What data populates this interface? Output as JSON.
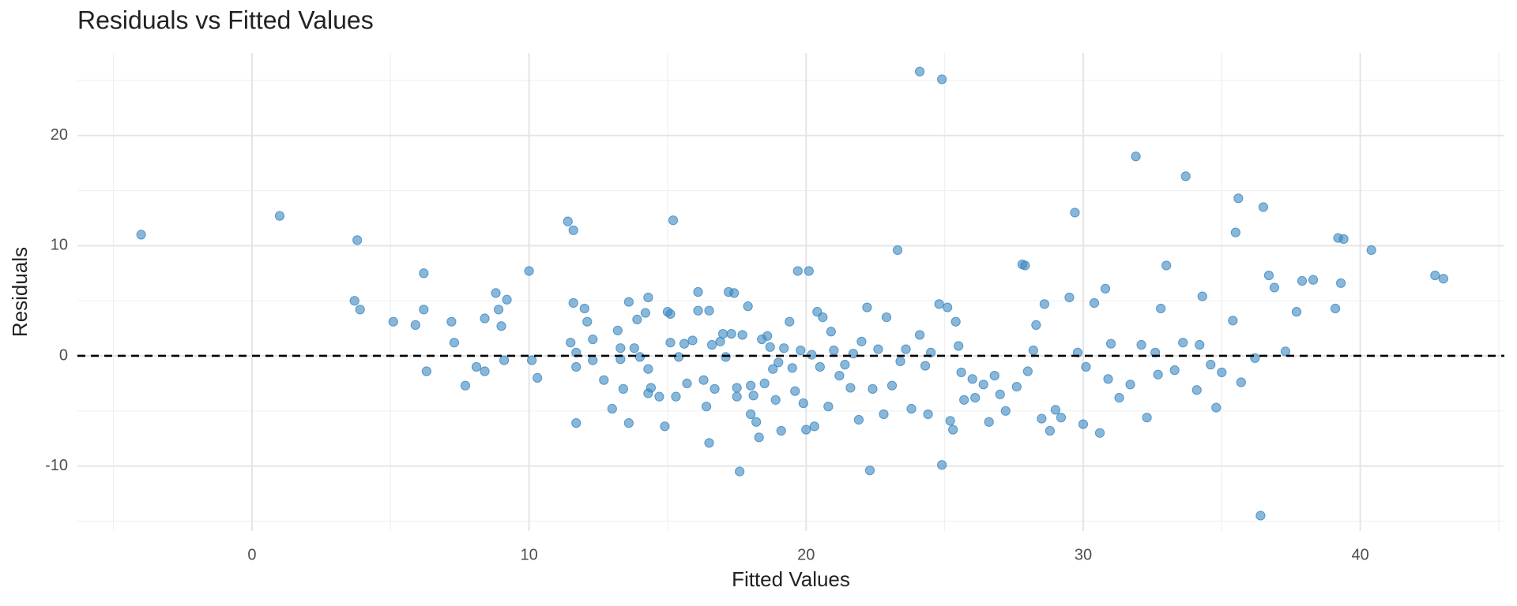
{
  "chart_data": {
    "type": "scatter",
    "title": "Residuals vs Fitted Values",
    "x_label": "Fitted Values",
    "y_label": "Residuals",
    "color": "#3a87c0",
    "grid": true,
    "hline": 0,
    "xlim": [
      -6.3,
      45.2
    ],
    "ylim": [
      -15.9,
      27.5
    ],
    "xticks": [
      0,
      10,
      20,
      30,
      40
    ],
    "yticks": [
      -10,
      0,
      10,
      20
    ],
    "x_minor_grid": [
      -5,
      5,
      15,
      25,
      35,
      45
    ],
    "y_minor_grid": [
      -15,
      -5,
      5,
      15,
      25
    ],
    "x": [
      -4.0,
      1.0,
      3.7,
      3.8,
      3.9,
      5.1,
      5.9,
      6.2,
      6.2,
      6.3,
      7.2,
      7.3,
      7.7,
      8.1,
      8.4,
      8.4,
      8.8,
      8.9,
      9.0,
      9.2,
      9.1,
      10.0,
      10.1,
      10.3,
      11.4,
      11.6,
      11.5,
      11.6,
      11.7,
      11.7,
      11.7,
      12.0,
      12.1,
      12.3,
      12.3,
      12.7,
      13.0,
      13.2,
      13.3,
      13.3,
      13.4,
      13.6,
      13.6,
      13.8,
      13.9,
      14.0,
      14.2,
      14.3,
      14.3,
      14.3,
      14.4,
      14.7,
      14.9,
      15.0,
      15.1,
      15.1,
      15.2,
      15.3,
      15.4,
      15.6,
      15.7,
      15.9,
      16.1,
      16.1,
      16.3,
      16.4,
      16.5,
      16.5,
      16.6,
      16.7,
      16.9,
      17.0,
      17.1,
      17.2,
      17.3,
      17.4,
      17.5,
      17.5,
      17.6,
      17.7,
      17.9,
      18.0,
      18.0,
      18.1,
      18.2,
      18.3,
      18.4,
      18.5,
      18.6,
      18.7,
      18.8,
      18.9,
      19.0,
      19.1,
      19.2,
      19.4,
      19.5,
      19.6,
      19.7,
      19.8,
      19.9,
      20.0,
      20.1,
      20.2,
      20.3,
      20.4,
      20.5,
      20.6,
      20.8,
      20.9,
      21.0,
      21.2,
      21.4,
      21.6,
      21.7,
      21.9,
      22.0,
      22.2,
      22.3,
      22.4,
      22.6,
      22.8,
      22.9,
      23.1,
      23.3,
      23.4,
      23.6,
      23.8,
      24.1,
      24.1,
      24.3,
      24.4,
      24.5,
      24.8,
      24.9,
      24.9,
      25.1,
      25.2,
      25.3,
      25.4,
      25.5,
      25.6,
      25.7,
      26.0,
      26.1,
      26.4,
      26.6,
      26.8,
      27.0,
      27.2,
      27.6,
      27.8,
      27.9,
      28.0,
      28.2,
      28.3,
      28.5,
      28.6,
      28.8,
      29.0,
      29.2,
      29.5,
      29.7,
      29.8,
      30.0,
      30.1,
      30.4,
      30.6,
      30.8,
      30.9,
      31.0,
      31.3,
      31.7,
      31.9,
      32.1,
      32.3,
      32.6,
      32.7,
      32.8,
      33.0,
      33.3,
      33.6,
      33.7,
      34.1,
      34.2,
      34.3,
      34.6,
      34.8,
      35.0,
      35.4,
      35.5,
      35.6,
      35.7,
      36.2,
      36.4,
      36.5,
      36.7,
      36.9,
      37.3,
      37.7,
      37.9,
      38.3,
      39.1,
      39.2,
      39.3,
      39.4,
      40.4,
      42.7,
      43.0
    ],
    "values": [
      11.0,
      12.7,
      5.0,
      10.5,
      4.2,
      3.1,
      2.8,
      7.5,
      4.2,
      -1.4,
      3.1,
      1.2,
      -2.7,
      -1.0,
      3.4,
      -1.4,
      5.7,
      4.2,
      2.7,
      5.1,
      -0.4,
      7.7,
      -0.4,
      -2.0,
      12.2,
      11.4,
      1.2,
      4.8,
      -1.0,
      0.3,
      -6.1,
      4.3,
      3.1,
      1.5,
      -0.4,
      -2.2,
      -4.8,
      2.3,
      0.7,
      -0.3,
      -3.0,
      4.9,
      -6.1,
      0.7,
      3.3,
      -0.1,
      3.9,
      5.3,
      -1.2,
      -3.4,
      -2.9,
      -3.7,
      -6.4,
      4.0,
      3.8,
      1.2,
      12.3,
      -3.7,
      -0.1,
      1.1,
      -2.5,
      1.4,
      5.8,
      4.1,
      -2.2,
      -4.6,
      4.1,
      -7.9,
      1.0,
      -3.0,
      1.3,
      2.0,
      -0.1,
      5.8,
      2.0,
      5.7,
      -2.9,
      -3.7,
      -10.5,
      1.9,
      4.5,
      -5.3,
      -2.7,
      -3.6,
      -6.0,
      -7.4,
      1.5,
      -2.5,
      1.8,
      0.8,
      -1.2,
      -4.0,
      -0.6,
      -6.8,
      0.7,
      3.1,
      -1.1,
      -3.2,
      7.7,
      0.5,
      -4.3,
      -6.7,
      7.7,
      0.1,
      -6.4,
      4.0,
      -1.0,
      3.5,
      -4.6,
      2.2,
      0.5,
      -1.8,
      -0.8,
      -2.9,
      0.2,
      -5.8,
      1.3,
      4.4,
      -10.4,
      -3.0,
      0.6,
      -5.3,
      3.5,
      -2.7,
      9.6,
      -0.5,
      0.6,
      -4.8,
      25.8,
      1.9,
      -0.9,
      -5.3,
      0.3,
      4.7,
      -9.9,
      25.1,
      4.4,
      -5.9,
      -6.7,
      3.1,
      0.9,
      -1.5,
      -4.0,
      -2.1,
      -3.8,
      -2.6,
      -6.0,
      -1.8,
      -3.5,
      -5.0,
      -2.8,
      8.3,
      8.2,
      -1.4,
      0.5,
      2.8,
      -5.7,
      4.7,
      -6.8,
      -4.9,
      -5.6,
      5.3,
      13.0,
      0.3,
      -6.2,
      -1.0,
      4.8,
      -7.0,
      6.1,
      -2.1,
      1.1,
      -3.8,
      -2.6,
      18.1,
      1.0,
      -5.6,
      0.3,
      -1.7,
      4.3,
      8.2,
      -1.3,
      1.2,
      16.3,
      -3.1,
      1.0,
      5.4,
      -0.8,
      -4.7,
      -1.5,
      3.2,
      11.2,
      14.3,
      -2.4,
      -0.2,
      -14.5,
      13.5,
      7.3,
      6.2,
      0.4,
      4.0,
      6.8,
      6.9,
      4.3,
      10.7,
      6.6,
      10.6,
      9.6,
      7.3,
      7.0
    ]
  }
}
